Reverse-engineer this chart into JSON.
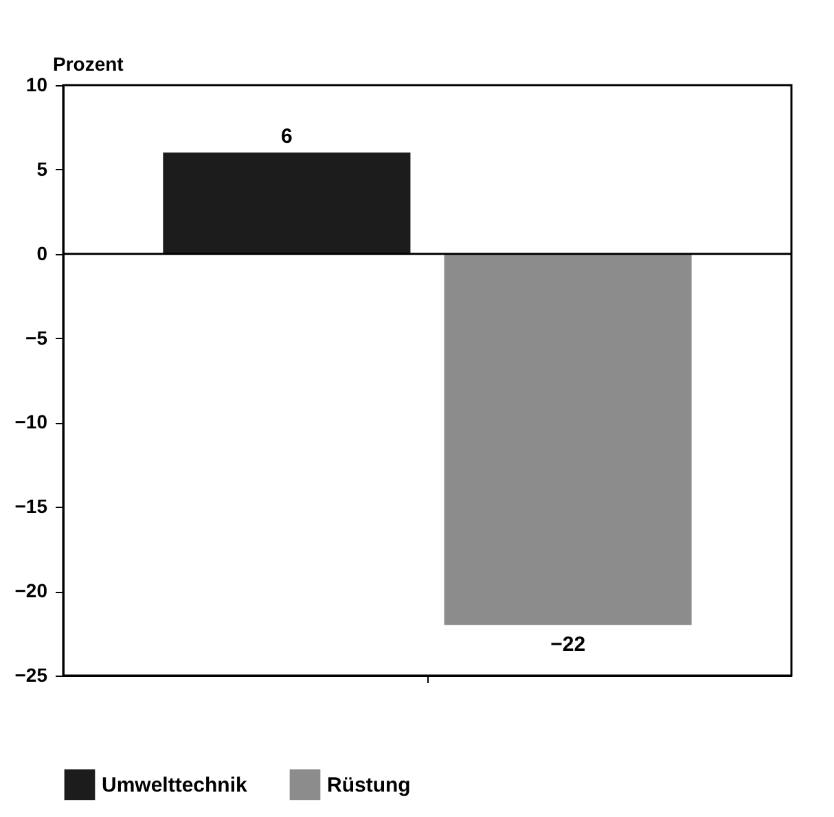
{
  "chart_data": {
    "type": "bar",
    "ylabel": "Prozent",
    "categories": [
      null
    ],
    "series": [
      {
        "name": "Umwelttechnik",
        "color": "#1c1c1c",
        "values": [
          6
        ]
      },
      {
        "name": "Rüstung",
        "color": "#8c8c8c",
        "values": [
          -22
        ]
      }
    ],
    "ylim": [
      -25,
      10
    ],
    "yticks": [
      -25,
      -20,
      -15,
      -10,
      -5,
      0,
      5,
      10
    ],
    "ref_lines": [
      {
        "axis": "y",
        "value": 0
      }
    ],
    "data_labels": true,
    "legend": "bottom",
    "grid": false
  }
}
